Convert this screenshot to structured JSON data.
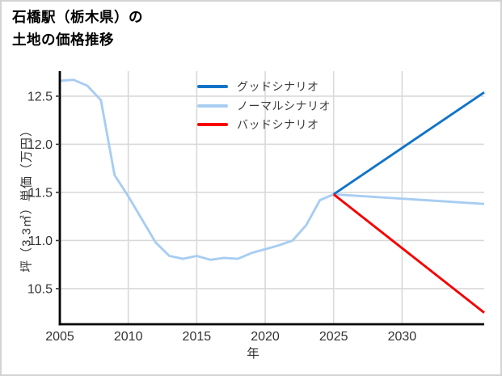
{
  "title": {
    "line1": "石橋駅（栃木県）の",
    "line2": "土地の価格推移"
  },
  "chart_data": {
    "type": "line",
    "title": "石橋駅（栃木県）の土地の価格推移",
    "xlabel": "年",
    "ylabel": "坪（3.3㎡）単価（万円）",
    "xlim": [
      2005,
      2036
    ],
    "ylim": [
      10.13,
      12.76
    ],
    "xticks": [
      2005,
      2010,
      2015,
      2020,
      2025,
      2030
    ],
    "yticks": [
      10.5,
      11.0,
      11.5,
      12.0,
      12.5
    ],
    "grid": true,
    "legend_position": "upper center-left, no frame",
    "series": [
      {
        "key": "good-scenario",
        "name": "グッドシナリオ",
        "color": "#1174c8",
        "x": [
          2025,
          2036
        ],
        "y": [
          11.48,
          12.54
        ]
      },
      {
        "key": "normal-scenario",
        "name": "ノーマルシナリオ",
        "color": "#a8cdf2",
        "x": [
          2005,
          2006,
          2007,
          2008,
          2009,
          2010,
          2011,
          2012,
          2013,
          2014,
          2015,
          2016,
          2017,
          2018,
          2019,
          2020,
          2021,
          2022,
          2023,
          2024,
          2025,
          2036
        ],
        "y": [
          12.66,
          12.67,
          12.61,
          12.46,
          11.68,
          11.46,
          11.22,
          10.98,
          10.84,
          10.81,
          10.84,
          10.8,
          10.82,
          10.81,
          10.87,
          10.91,
          10.95,
          11.0,
          11.16,
          11.42,
          11.48,
          11.38
        ]
      },
      {
        "key": "bad-scenario",
        "name": "バッドシナリオ",
        "color": "#f70000",
        "x": [
          2025,
          2036
        ],
        "y": [
          11.48,
          10.25
        ]
      }
    ]
  }
}
